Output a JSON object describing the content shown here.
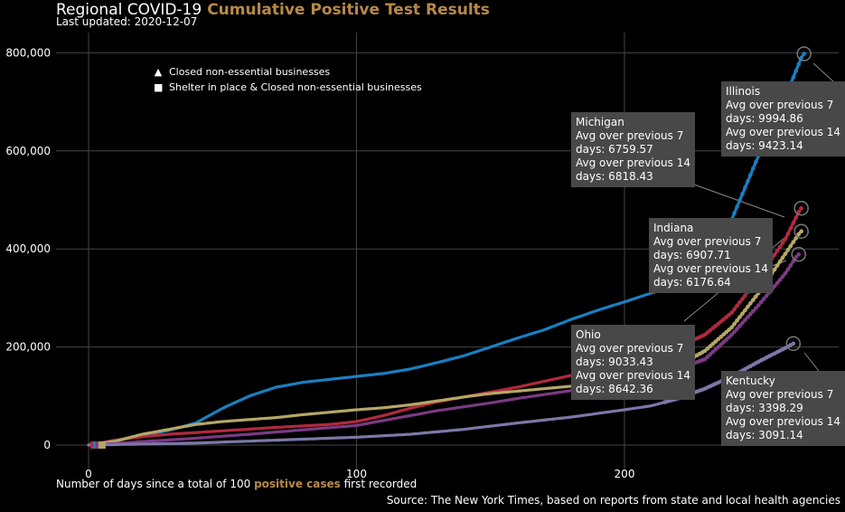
{
  "header": {
    "title_prefix": "Regional COVID-19",
    "title_main": "Cumulative Positive Test Results",
    "updated": "Last updated: 2020-12-07"
  },
  "xlabel": {
    "pre": "Number of days since a total of 100",
    "highlight": "positive cases",
    "post": "first recorded"
  },
  "source": "Source: The New York Times, based on reports from state and local health agencies",
  "legend": [
    {
      "symbol": "▲",
      "label": "Closed non-essential businesses"
    },
    {
      "symbol": "■",
      "label": "Shelter in place & Closed non-essential businesses"
    }
  ],
  "tooltips": {
    "illinois": [
      "Illinois",
      "Avg over previous 7",
      "days: 9994.86",
      "Avg over previous 14",
      "days: 9423.14"
    ],
    "michigan": [
      "Michigan",
      "Avg over previous 7",
      "days: 6759.57",
      "Avg over previous 14",
      "days: 6818.43"
    ],
    "indiana": [
      "Indiana",
      "Avg over previous 7",
      "days: 6907.71",
      "Avg over previous 14",
      "days: 6176.64"
    ],
    "ohio": [
      "Ohio",
      "Avg over previous 7",
      "days: 9033.43",
      "Avg over previous 14",
      "days: 8642.36"
    ],
    "kentucky": [
      "Kentucky",
      "Avg over previous 7",
      "days: 3398.29",
      "Avg over previous 14",
      "days: 3091.14"
    ]
  },
  "chart_data": {
    "type": "line",
    "xlabel": "Number of days since a total of 100 positive cases first recorded",
    "xlim": [
      -12,
      280
    ],
    "ylim": [
      -50000,
      830000
    ],
    "x_ticks": [
      0,
      100,
      200
    ],
    "x_tick_labels": [
      "0",
      "100",
      "200"
    ],
    "y_ticks": [
      0,
      200000,
      400000,
      600000,
      800000
    ],
    "y_tick_labels": [
      "0",
      "200,000",
      "400,000",
      "600,000",
      "800,000"
    ],
    "grid": true,
    "legend_position": "top-left",
    "series": [
      {
        "name": "Illinois",
        "color": "#1a7fc1",
        "points": [
          [
            0,
            0
          ],
          [
            10,
            8000
          ],
          [
            20,
            20000
          ],
          [
            30,
            30000
          ],
          [
            40,
            45000
          ],
          [
            50,
            75000
          ],
          [
            60,
            100000
          ],
          [
            70,
            118000
          ],
          [
            80,
            128000
          ],
          [
            90,
            134000
          ],
          [
            100,
            140000
          ],
          [
            110,
            146000
          ],
          [
            120,
            155000
          ],
          [
            130,
            168000
          ],
          [
            140,
            182000
          ],
          [
            150,
            200000
          ],
          [
            160,
            218000
          ],
          [
            170,
            235000
          ],
          [
            180,
            256000
          ],
          [
            190,
            275000
          ],
          [
            200,
            292000
          ],
          [
            210,
            310000
          ],
          [
            220,
            325000
          ],
          [
            230,
            355000
          ],
          [
            240,
            460000
          ],
          [
            250,
            590000
          ],
          [
            260,
            710000
          ],
          [
            266,
            790000
          ],
          [
            267,
            798000
          ]
        ]
      },
      {
        "name": "Michigan",
        "color": "#b2293f",
        "points": [
          [
            0,
            0
          ],
          [
            10,
            10000
          ],
          [
            20,
            17000
          ],
          [
            30,
            22000
          ],
          [
            50,
            29000
          ],
          [
            70,
            36000
          ],
          [
            90,
            42000
          ],
          [
            100,
            48000
          ],
          [
            110,
            60000
          ],
          [
            120,
            75000
          ],
          [
            130,
            88000
          ],
          [
            140,
            98000
          ],
          [
            150,
            108000
          ],
          [
            160,
            118000
          ],
          [
            170,
            130000
          ],
          [
            180,
            142000
          ],
          [
            190,
            155000
          ],
          [
            200,
            170000
          ],
          [
            210,
            185000
          ],
          [
            220,
            200000
          ],
          [
            230,
            225000
          ],
          [
            240,
            270000
          ],
          [
            250,
            340000
          ],
          [
            260,
            420000
          ],
          [
            265,
            475000
          ],
          [
            266,
            483000
          ]
        ]
      },
      {
        "name": "Indiana",
        "color": "#b5a766",
        "points": [
          [
            0,
            0
          ],
          [
            10,
            8000
          ],
          [
            20,
            22000
          ],
          [
            30,
            32000
          ],
          [
            40,
            42000
          ],
          [
            50,
            48000
          ],
          [
            60,
            52000
          ],
          [
            70,
            56000
          ],
          [
            80,
            62000
          ],
          [
            90,
            67000
          ],
          [
            100,
            72000
          ],
          [
            110,
            76000
          ],
          [
            120,
            82000
          ],
          [
            130,
            90000
          ],
          [
            140,
            98000
          ],
          [
            150,
            105000
          ],
          [
            160,
            110000
          ],
          [
            170,
            115000
          ],
          [
            180,
            120000
          ],
          [
            190,
            126000
          ],
          [
            200,
            135000
          ],
          [
            210,
            147000
          ],
          [
            220,
            162000
          ],
          [
            230,
            192000
          ],
          [
            240,
            240000
          ],
          [
            250,
            310000
          ],
          [
            260,
            390000
          ],
          [
            265,
            430000
          ],
          [
            266,
            436000
          ]
        ]
      },
      {
        "name": "Ohio",
        "color": "#7b3a84",
        "points": [
          [
            0,
            0
          ],
          [
            10,
            3000
          ],
          [
            20,
            7000
          ],
          [
            40,
            14000
          ],
          [
            60,
            22000
          ],
          [
            80,
            31000
          ],
          [
            100,
            40000
          ],
          [
            110,
            50000
          ],
          [
            120,
            60000
          ],
          [
            130,
            70000
          ],
          [
            140,
            78000
          ],
          [
            150,
            86000
          ],
          [
            160,
            95000
          ],
          [
            170,
            103000
          ],
          [
            180,
            111000
          ],
          [
            190,
            120000
          ],
          [
            200,
            130000
          ],
          [
            210,
            142000
          ],
          [
            220,
            155000
          ],
          [
            230,
            175000
          ],
          [
            240,
            225000
          ],
          [
            250,
            285000
          ],
          [
            260,
            350000
          ],
          [
            264,
            383000
          ],
          [
            265,
            389000
          ]
        ]
      },
      {
        "name": "Kentucky",
        "color": "#7b78a8",
        "points": [
          [
            0,
            0
          ],
          [
            20,
            2000
          ],
          [
            40,
            4000
          ],
          [
            60,
            8000
          ],
          [
            80,
            12000
          ],
          [
            100,
            16000
          ],
          [
            120,
            22000
          ],
          [
            140,
            32000
          ],
          [
            160,
            45000
          ],
          [
            180,
            57000
          ],
          [
            200,
            72000
          ],
          [
            210,
            80000
          ],
          [
            220,
            95000
          ],
          [
            230,
            115000
          ],
          [
            240,
            140000
          ],
          [
            250,
            170000
          ],
          [
            260,
            198000
          ],
          [
            263,
            207000
          ]
        ]
      }
    ]
  }
}
